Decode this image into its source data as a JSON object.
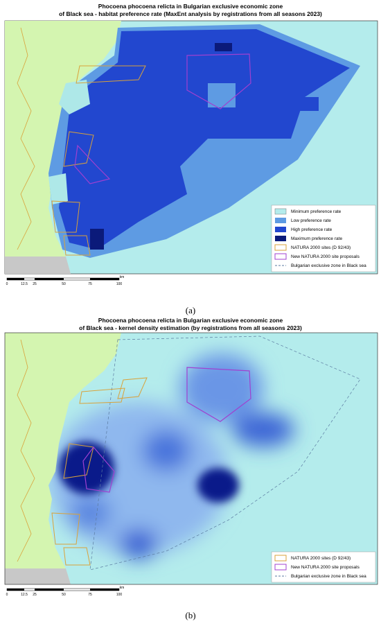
{
  "panel_a": {
    "title": [
      "Phocoena phocoena relicta in Bulgarian exclusive economic zone",
      "of Black sea - habitat preference rate (MaxEnt analysis by registrations from all seasons 2023)"
    ],
    "legend": [
      "Minimum preference rate",
      "Low preference rate",
      "High preference rate",
      "Maximum preference rate",
      "NATURA 2000 sites (D 92/43)",
      "New NATURA 2000 site proposals",
      "Bulgarian exclusive zone in Black sea"
    ],
    "scale": [
      "0",
      "12.5",
      "25",
      "50",
      "75",
      "100"
    ],
    "unit": "km",
    "caption": "(a)"
  },
  "panel_b": {
    "title": [
      "Phocoena phocoena relicta in Bulgarian exclusive economic zone",
      "of Black sea - kernel density estimation (by registrations from all seasons 2023)"
    ],
    "legend": [
      "NATURA 2000 sites (D 92/43)",
      "New NATURA 2000 site proposals",
      "Bulgarian exclusive zone in Black sea"
    ],
    "scale": [
      "0",
      "12.5",
      "25",
      "50",
      "75",
      "100"
    ],
    "unit": "km",
    "caption": "(b)"
  }
}
